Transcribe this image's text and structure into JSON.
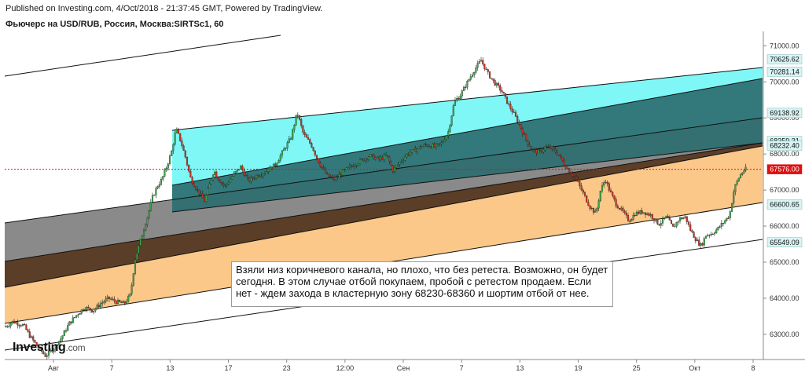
{
  "header": {
    "published": "Published on Investing.com, 4/Oct/2018 - 21:37:45 GMT, Powered by TradingView.",
    "symbol": "Фьючерс на USD/RUB, Россия, Москва:SIRTSc1, 60"
  },
  "annotation": "Взяли низ коричневого канала, но плохо, что без ретеста. Возможно, он будет сегодня. В  этом случае отбой покупаем, пробой с ретестом продаем. Если нет - ждем захода в кластерную зону 68230-68360 и шортим отбой от нее.",
  "logo": {
    "main": "Investing",
    "suffix": ".com"
  },
  "colors": {
    "cyan_zone": "#7ff7f7",
    "teal_zone": "#2e7275",
    "gray_zone": "#808080",
    "brown_zone": "#4b3320",
    "orange_zone": "#fcc88a",
    "up_candle": "#3aa84a",
    "down_candle": "#c8321e",
    "price_marker": "#e01010",
    "level_marker_bg": "#d9f4f4"
  },
  "chart_data": {
    "type": "candlestick",
    "symbol": "SIRTSc1",
    "timeframe": "60",
    "x_ticks": [
      "Авг",
      "7",
      "13",
      "17",
      "23",
      "12:00",
      "Сен",
      "7",
      "13",
      "19",
      "25",
      "Окт",
      "8"
    ],
    "y_ticks": [
      71000,
      70000,
      69000,
      68000,
      67000,
      66000,
      65000,
      64000,
      63000
    ],
    "ylim": [
      62300,
      71400
    ],
    "price_levels": [
      {
        "value": "70625.62"
      },
      {
        "value": "70281.14"
      },
      {
        "value": "69138.92"
      },
      {
        "value": "68359.31"
      },
      {
        "value": "68232.40"
      },
      {
        "value": "67576.00",
        "current": true
      },
      {
        "value": "66600.65"
      },
      {
        "value": "65549.09"
      }
    ],
    "path": [
      [
        0,
        63200
      ],
      [
        10,
        63350
      ],
      [
        24,
        63250
      ],
      [
        32,
        62950
      ],
      [
        42,
        62650
      ],
      [
        52,
        62400
      ],
      [
        62,
        62600
      ],
      [
        72,
        62900
      ],
      [
        82,
        63300
      ],
      [
        92,
        63550
      ],
      [
        102,
        63750
      ],
      [
        112,
        63650
      ],
      [
        122,
        63850
      ],
      [
        132,
        64000
      ],
      [
        142,
        63900
      ],
      [
        152,
        63850
      ],
      [
        160,
        64100
      ],
      [
        166,
        65100
      ],
      [
        172,
        65550
      ],
      [
        178,
        66000
      ],
      [
        182,
        66300
      ],
      [
        188,
        66800
      ],
      [
        194,
        67100
      ],
      [
        200,
        67300
      ],
      [
        206,
        67650
      ],
      [
        212,
        68050
      ],
      [
        218,
        68700
      ],
      [
        224,
        68350
      ],
      [
        230,
        67900
      ],
      [
        236,
        67350
      ],
      [
        242,
        67100
      ],
      [
        248,
        66900
      ],
      [
        254,
        66700
      ],
      [
        260,
        67100
      ],
      [
        266,
        67550
      ],
      [
        272,
        67300
      ],
      [
        280,
        67100
      ],
      [
        290,
        67400
      ],
      [
        300,
        67650
      ],
      [
        310,
        67250
      ],
      [
        320,
        67400
      ],
      [
        332,
        67500
      ],
      [
        344,
        67700
      ],
      [
        356,
        68150
      ],
      [
        364,
        68450
      ],
      [
        372,
        69150
      ],
      [
        380,
        68550
      ],
      [
        390,
        68250
      ],
      [
        400,
        67750
      ],
      [
        410,
        67400
      ],
      [
        420,
        67300
      ],
      [
        430,
        67500
      ],
      [
        440,
        67650
      ],
      [
        452,
        67800
      ],
      [
        464,
        67950
      ],
      [
        476,
        67850
      ],
      [
        486,
        67950
      ],
      [
        494,
        67550
      ],
      [
        502,
        67750
      ],
      [
        512,
        68000
      ],
      [
        524,
        68150
      ],
      [
        536,
        68250
      ],
      [
        548,
        68200
      ],
      [
        556,
        68300
      ],
      [
        564,
        68600
      ],
      [
        572,
        69450
      ],
      [
        580,
        69650
      ],
      [
        590,
        70050
      ],
      [
        598,
        70350
      ],
      [
        606,
        70600
      ],
      [
        614,
        70250
      ],
      [
        622,
        70000
      ],
      [
        632,
        69750
      ],
      [
        640,
        69400
      ],
      [
        648,
        69100
      ],
      [
        656,
        68750
      ],
      [
        664,
        68350
      ],
      [
        672,
        68100
      ],
      [
        680,
        68050
      ],
      [
        688,
        68200
      ],
      [
        696,
        68150
      ],
      [
        704,
        68000
      ],
      [
        712,
        67700
      ],
      [
        720,
        67500
      ],
      [
        728,
        67250
      ],
      [
        736,
        66900
      ],
      [
        744,
        66550
      ],
      [
        752,
        66350
      ],
      [
        758,
        67000
      ],
      [
        764,
        67300
      ],
      [
        770,
        66950
      ],
      [
        778,
        66600
      ],
      [
        786,
        66400
      ],
      [
        794,
        66150
      ],
      [
        802,
        66350
      ],
      [
        812,
        66400
      ],
      [
        822,
        66300
      ],
      [
        832,
        66050
      ],
      [
        842,
        66250
      ],
      [
        850,
        65950
      ],
      [
        858,
        66200
      ],
      [
        866,
        66250
      ],
      [
        872,
        65900
      ],
      [
        880,
        65600
      ],
      [
        886,
        65450
      ],
      [
        892,
        65750
      ],
      [
        900,
        65800
      ],
      [
        908,
        65950
      ],
      [
        916,
        66150
      ],
      [
        922,
        66300
      ],
      [
        928,
        67050
      ],
      [
        934,
        67350
      ],
      [
        940,
        67550
      ],
      [
        944,
        67600
      ]
    ]
  }
}
